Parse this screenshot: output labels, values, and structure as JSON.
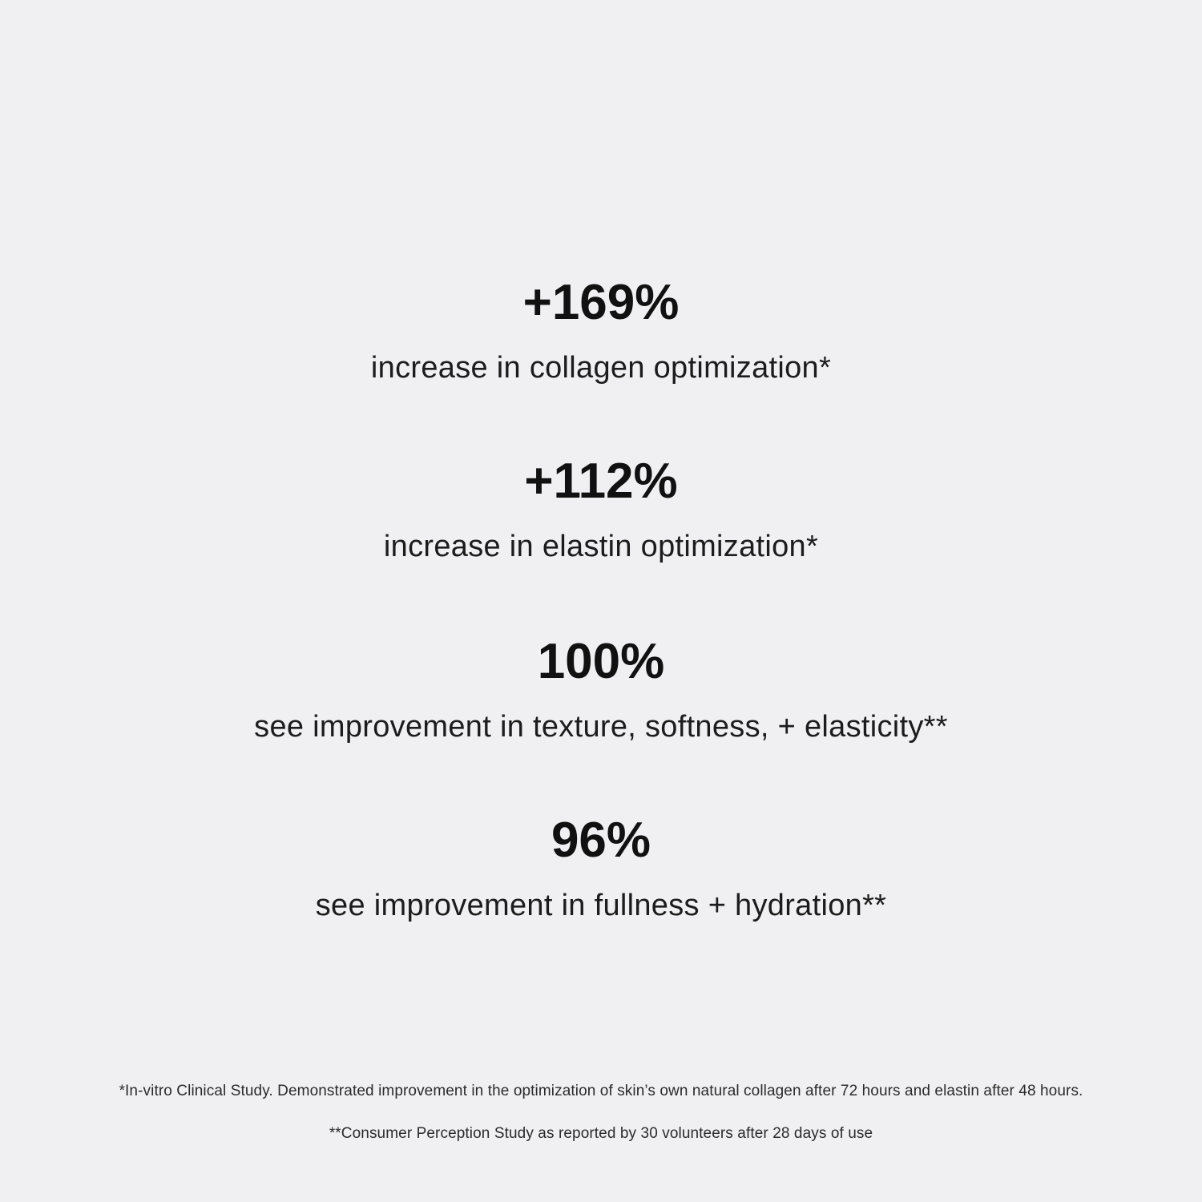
{
  "page": {
    "background_color": "#f0f0f2",
    "stat_value_color": "#111111",
    "stat_label_color": "#1c1c1c",
    "footnote_color": "#2b2b2b"
  },
  "stats": [
    {
      "value": "+169%",
      "label": "increase in collagen optimization*"
    },
    {
      "value": "+112%",
      "label": "increase in elastin optimization*"
    },
    {
      "value": "100%",
      "label": "see improvement in texture, softness, + elasticity**"
    },
    {
      "value": "96%",
      "label": "see improvement in fullness + hydration**"
    }
  ],
  "footnotes": [
    "*In-vitro Clinical Study. Demonstrated improvement in the optimization of skin’s own natural collagen after 72 hours and elastin after 48 hours.",
    "**Consumer Perception Study as reported by 30 volunteers after 28 days of use"
  ]
}
